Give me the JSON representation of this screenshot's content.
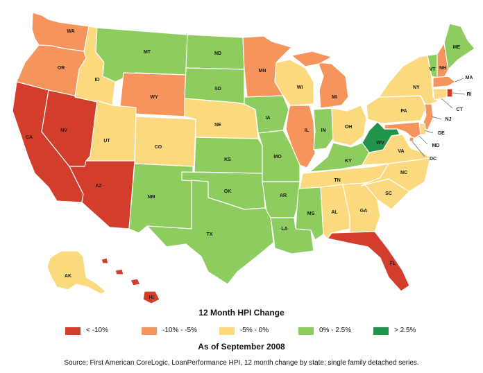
{
  "colors": {
    "c1": "#d33d2c",
    "c2": "#f5945c",
    "c3": "#fad97f",
    "c4": "#8dcc5e",
    "c5": "#22934a"
  },
  "legend": {
    "title": "12 Month HPI Change",
    "subtitle": "As of September 2008",
    "items": [
      {
        "label": "< -10%",
        "color": "#d33d2c"
      },
      {
        "label": "-10% - -5%",
        "color": "#f5945c"
      },
      {
        "label": "-5% - 0%",
        "color": "#fad97f"
      },
      {
        "label": "0% - 2.5%",
        "color": "#8dcc5e"
      },
      {
        "label": "> 2.5%",
        "color": "#22934a"
      }
    ]
  },
  "source": "Source: First American CoreLogic, LoanPerformance HPI, 12 month change by state; single family detached series.",
  "states": {
    "WA": {
      "label": "WA",
      "color": "#f5945c"
    },
    "OR": {
      "label": "OR",
      "color": "#f5945c"
    },
    "CA": {
      "label": "CA",
      "color": "#d33d2c"
    },
    "NV": {
      "label": "NV",
      "color": "#d33d2c"
    },
    "ID": {
      "label": "ID",
      "color": "#fad97f"
    },
    "MT": {
      "label": "MT",
      "color": "#8dcc5e"
    },
    "WY": {
      "label": "WY",
      "color": "#f5945c"
    },
    "UT": {
      "label": "UT",
      "color": "#fad97f"
    },
    "AZ": {
      "label": "AZ",
      "color": "#d33d2c"
    },
    "CO": {
      "label": "CO",
      "color": "#fad97f"
    },
    "NM": {
      "label": "NM",
      "color": "#8dcc5e"
    },
    "ND": {
      "label": "ND",
      "color": "#8dcc5e"
    },
    "SD": {
      "label": "SD",
      "color": "#8dcc5e"
    },
    "NE": {
      "label": "NE",
      "color": "#fad97f"
    },
    "KS": {
      "label": "KS",
      "color": "#8dcc5e"
    },
    "OK": {
      "label": "OK",
      "color": "#8dcc5e"
    },
    "TX": {
      "label": "TX",
      "color": "#8dcc5e"
    },
    "MN": {
      "label": "MN",
      "color": "#f5945c"
    },
    "IA": {
      "label": "IA",
      "color": "#8dcc5e"
    },
    "MO": {
      "label": "MO",
      "color": "#8dcc5e"
    },
    "AR": {
      "label": "AR",
      "color": "#8dcc5e"
    },
    "LA": {
      "label": "LA",
      "color": "#8dcc5e"
    },
    "WI": {
      "label": "WI",
      "color": "#fad97f"
    },
    "IL": {
      "label": "IL",
      "color": "#f5945c"
    },
    "MI": {
      "label": "MI",
      "color": "#f5945c"
    },
    "IN": {
      "label": "IN",
      "color": "#8dcc5e"
    },
    "OH": {
      "label": "OH",
      "color": "#fad97f"
    },
    "KY": {
      "label": "KY",
      "color": "#8dcc5e"
    },
    "TN": {
      "label": "TN",
      "color": "#fad97f"
    },
    "MS": {
      "label": "MS",
      "color": "#8dcc5e"
    },
    "AL": {
      "label": "AL",
      "color": "#fad97f"
    },
    "GA": {
      "label": "GA",
      "color": "#fad97f"
    },
    "FL": {
      "label": "FL",
      "color": "#d33d2c"
    },
    "SC": {
      "label": "SC",
      "color": "#fad97f"
    },
    "NC": {
      "label": "NC",
      "color": "#fad97f"
    },
    "VA": {
      "label": "VA",
      "color": "#fad97f"
    },
    "WV": {
      "label": "WV",
      "color": "#22934a"
    },
    "PA": {
      "label": "PA",
      "color": "#fad97f"
    },
    "NY": {
      "label": "NY",
      "color": "#fad97f"
    },
    "VT": {
      "label": "VT",
      "color": "#8dcc5e"
    },
    "NH": {
      "label": "NH",
      "color": "#f5945c"
    },
    "ME": {
      "label": "ME",
      "color": "#8dcc5e"
    },
    "MA": {
      "label": "MA",
      "color": "#f5945c"
    },
    "RI": {
      "label": "RI",
      "color": "#d33d2c"
    },
    "CT": {
      "label": "CT",
      "color": "#fad97f"
    },
    "NJ": {
      "label": "NJ",
      "color": "#f5945c"
    },
    "DE": {
      "label": "DE",
      "color": "#fad97f"
    },
    "MD": {
      "label": "MD",
      "color": "#f5945c"
    },
    "DC": {
      "label": "DC",
      "color": "#f5945c"
    },
    "AK": {
      "label": "AK",
      "color": "#fad97f"
    },
    "HI": {
      "label": "HI",
      "color": "#d33d2c"
    }
  }
}
